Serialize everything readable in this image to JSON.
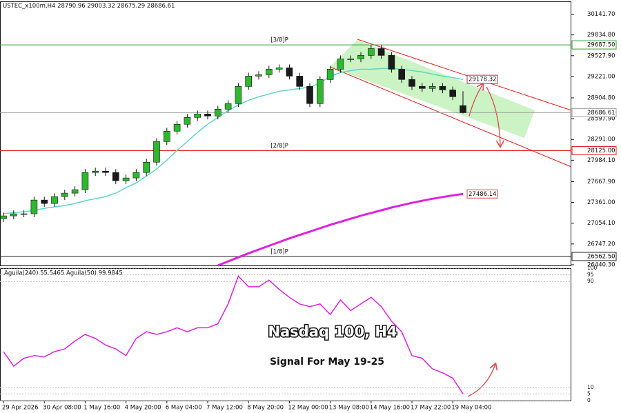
{
  "chart_data": [
    {
      "type": "candlestick",
      "title": "USTEC_x100m,H4",
      "categories": [
        "29 Apr 2026",
        null,
        null,
        null,
        "30 Apr 08:00",
        null,
        null,
        null,
        "1 May 16:00",
        null,
        null,
        null,
        "4 May 20:00",
        null,
        null,
        null,
        "6 May 04:00",
        null,
        null,
        null,
        "7 May 12:00",
        null,
        null,
        null,
        "8 May 20:00",
        null,
        null,
        null,
        "12 May 00:00",
        null,
        null,
        null,
        "13 May 08:00",
        null,
        null,
        null,
        "14 May 16:00",
        null,
        null,
        null,
        "17 May 22:00",
        null,
        null,
        null,
        "19 May 04:00",
        null
      ],
      "open": [
        27120,
        27162,
        27193,
        27193,
        27396,
        27345,
        27447,
        27498,
        27549,
        27803,
        27823,
        27803,
        27681,
        27722,
        27803,
        27955,
        28260,
        28413,
        28515,
        28616,
        28667,
        28637,
        28738,
        28820,
        29074,
        29226,
        29247,
        29328,
        29349,
        29226,
        29074,
        28820,
        29176,
        29328,
        29481,
        29481,
        29532,
        29633,
        29532,
        29328,
        29176,
        29074,
        29044,
        29074,
        29023,
        28790.96
      ],
      "high": [
        27212,
        27243,
        27243,
        27446,
        27446,
        27497,
        27548,
        27599,
        27853,
        27873,
        27873,
        27853,
        27772,
        27853,
        28005,
        28310,
        28463,
        28565,
        28666,
        28717,
        28717,
        28788,
        28870,
        29124,
        29276,
        29297,
        29378,
        29399,
        29399,
        29276,
        29124,
        29226,
        29378,
        29531,
        29531,
        29582,
        29683,
        29683,
        29582,
        29378,
        29226,
        29124,
        29124,
        29124,
        29073,
        29003.32
      ],
      "low": [
        27070,
        27112,
        27143,
        27143,
        27295,
        27295,
        27397,
        27448,
        27499,
        27753,
        27753,
        27631,
        27631,
        27672,
        27753,
        27905,
        28210,
        28363,
        28465,
        28566,
        28587,
        28587,
        28688,
        28770,
        29024,
        29176,
        29197,
        29278,
        29176,
        29024,
        28770,
        28770,
        29126,
        29278,
        29431,
        29431,
        29482,
        29482,
        29278,
        29126,
        29024,
        28994,
        28994,
        28973,
        28872,
        28675.29
      ],
      "close": [
        27162,
        27193,
        27193,
        27396,
        27345,
        27447,
        27498,
        27549,
        27803,
        27823,
        27803,
        27681,
        27722,
        27803,
        27955,
        28260,
        28413,
        28515,
        28616,
        28667,
        28637,
        28738,
        28820,
        29074,
        29226,
        29247,
        29328,
        29349,
        29226,
        29074,
        28820,
        29176,
        29328,
        29481,
        29481,
        29532,
        29633,
        29532,
        29328,
        29176,
        29074,
        29044,
        29074,
        29023,
        28922,
        28686.61
      ],
      "up_color": "#2db82d",
      "down_color": "#1a1a1a",
      "series": [
        {
          "color": "#5fd6c8",
          "values": [
            27193,
            27213,
            27223,
            27244,
            27274,
            27295,
            27315,
            27345,
            27386,
            27417,
            27447,
            27498,
            27579,
            27650,
            27752,
            27854,
            27986,
            28128,
            28260,
            28393,
            28515,
            28616,
            28718,
            28799,
            28870,
            28921,
            28962,
            29003,
            29023,
            29043,
            29064,
            29125,
            29226,
            29277,
            29308,
            29328,
            29328,
            29338,
            29338,
            29328,
            29308,
            29287,
            29257,
            29226,
            29206,
            29176
          ]
        },
        {
          "color": "#e020e0",
          "values": [
            null,
            null,
            null,
            null,
            null,
            null,
            null,
            null,
            null,
            null,
            null,
            null,
            null,
            null,
            null,
            null,
            null,
            null,
            null,
            null,
            null,
            26430,
            26490,
            26550,
            26610,
            26665,
            26720,
            26775,
            26830,
            26880,
            26930,
            26980,
            27030,
            27075,
            27120,
            27165,
            27205,
            27245,
            27285,
            27320,
            27355,
            27385,
            27415,
            27440,
            27465,
            27486.14
          ]
        }
      ],
      "levels": [
        {
          "name": "[3/8]P",
          "value": 29687.5,
          "value_label": "29687.50",
          "color": "#2e9e2e"
        },
        {
          "value": 28686.61,
          "color": "#a0a0a0"
        },
        {
          "name": "[2/8]P",
          "value": 28125,
          "value_label": "28125.00",
          "color": "#e02020"
        },
        {
          "name": "[1/8]P",
          "value": 26562.5,
          "value_label": "26562.50",
          "color": "#202020"
        }
      ],
      "price_marker": 29178.32,
      "annotations": [
        "Nasdaq 100, H4",
        "Signal For May 19-25"
      ],
      "ylim": [
        26430,
        30330
      ],
      "yticks": [
        {
          "value": 30141.7,
          "label": "30141.70"
        },
        {
          "value": 29834.8,
          "label": "29834.80"
        },
        {
          "value": 29527.9,
          "label": "29527.90"
        },
        {
          "value": 29221,
          "label": "29221.00"
        },
        {
          "value": 28904.8,
          "label": "28904.80"
        },
        {
          "value": 28597.9,
          "label": "28597.90"
        },
        {
          "value": 28291,
          "label": "28291.00"
        },
        {
          "value": 27984.1,
          "label": "27984.10"
        },
        {
          "value": 27667.9,
          "label": "27667.90"
        },
        {
          "value": 27361,
          "label": "27361.00"
        },
        {
          "value": 27054.1,
          "label": "27054.10"
        },
        {
          "value": 26747.2,
          "label": "26747.20"
        },
        {
          "value": 26440.3,
          "label": "26440.30"
        }
      ]
    },
    {
      "type": "line",
      "title": "Aguila(240) 55.5465  Aguila(50) 99.9845",
      "color": "#e020e0",
      "values": [
        37,
        26,
        32,
        34,
        33,
        37,
        39,
        45,
        50,
        47,
        42,
        39,
        34,
        47,
        52,
        50,
        52,
        55,
        52,
        55,
        55,
        58,
        73,
        94,
        86,
        86,
        91,
        84,
        78,
        73,
        71,
        73,
        65,
        76,
        68,
        73,
        78,
        71,
        60,
        52,
        34,
        32,
        24,
        21,
        17,
        5
      ],
      "ylim": [
        0,
        100
      ],
      "yticks": [
        100,
        95,
        90,
        10,
        5,
        0
      ]
    }
  ]
}
